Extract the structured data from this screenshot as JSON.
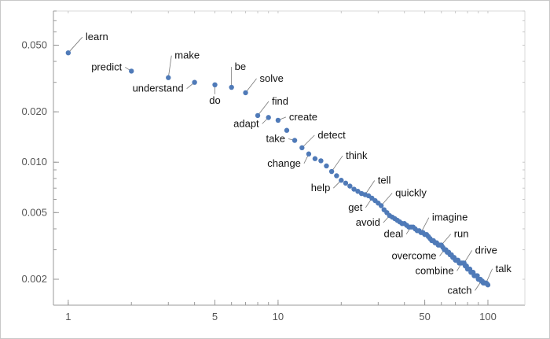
{
  "chart_data": {
    "type": "scatter",
    "title": "",
    "xlabel": "",
    "ylabel": "",
    "x_scale": "log",
    "y_scale": "log",
    "xlim": [
      0.85,
      150
    ],
    "ylim": [
      0.0014,
      0.08
    ],
    "grid": false,
    "x_ticks": [
      {
        "value": 1,
        "label": "1"
      },
      {
        "value": 5,
        "label": "5"
      },
      {
        "value": 10,
        "label": "10"
      },
      {
        "value": 50,
        "label": "50"
      },
      {
        "value": 100,
        "label": "100"
      }
    ],
    "y_ticks": [
      {
        "value": 0.05,
        "label": "0.050"
      },
      {
        "value": 0.02,
        "label": "0.020"
      },
      {
        "value": 0.01,
        "label": "0.010"
      },
      {
        "value": 0.005,
        "label": "0.005"
      },
      {
        "value": 0.002,
        "label": "0.002"
      }
    ],
    "point_color": "#4f7ab8",
    "labeled_points": [
      {
        "word": "learn",
        "rank": 1,
        "value": 0.045
      },
      {
        "word": "predict",
        "rank": 2,
        "value": 0.035
      },
      {
        "word": "make",
        "rank": 3,
        "value": 0.032
      },
      {
        "word": "understand",
        "rank": 4,
        "value": 0.03
      },
      {
        "word": "do",
        "rank": 5,
        "value": 0.029
      },
      {
        "word": "be",
        "rank": 6,
        "value": 0.028
      },
      {
        "word": "solve",
        "rank": 7,
        "value": 0.026
      },
      {
        "word": "find",
        "rank": 8,
        "value": 0.019
      },
      {
        "word": "adapt",
        "rank": 9,
        "value": 0.0185
      },
      {
        "word": "create",
        "rank": 10,
        "value": 0.0178
      },
      {
        "word": "take",
        "rank": 12,
        "value": 0.0135
      },
      {
        "word": "detect",
        "rank": 13,
        "value": 0.0122
      },
      {
        "word": "change",
        "rank": 14,
        "value": 0.0112
      },
      {
        "word": "think",
        "rank": 18,
        "value": 0.0088
      },
      {
        "word": "help",
        "rank": 20,
        "value": 0.0078
      },
      {
        "word": "tell",
        "rank": 26,
        "value": 0.0064
      },
      {
        "word": "get",
        "rank": 28,
        "value": 0.0061
      },
      {
        "word": "quickly",
        "rank": 31,
        "value": 0.0055
      },
      {
        "word": "avoid",
        "rank": 34,
        "value": 0.0048
      },
      {
        "word": "imagine",
        "rank": 48,
        "value": 0.0038
      },
      {
        "word": "deal",
        "rank": 43,
        "value": 0.0041
      },
      {
        "word": "run",
        "rank": 60,
        "value": 0.0032
      },
      {
        "word": "overcome",
        "rank": 62,
        "value": 0.003
      },
      {
        "word": "drive",
        "rank": 77,
        "value": 0.0025
      },
      {
        "word": "combine",
        "rank": 75,
        "value": 0.0025
      },
      {
        "word": "talk",
        "rank": 98,
        "value": 0.0019
      },
      {
        "word": "catch",
        "rank": 93,
        "value": 0.00195
      }
    ],
    "unlabeled_points": [
      [
        11,
        0.0155
      ],
      [
        15,
        0.0105
      ],
      [
        16,
        0.0102
      ],
      [
        17,
        0.0095
      ],
      [
        19,
        0.0083
      ],
      [
        21,
        0.0075
      ],
      [
        22,
        0.0072
      ],
      [
        23,
        0.0069
      ],
      [
        24,
        0.0067
      ],
      [
        25,
        0.0065
      ],
      [
        27,
        0.0063
      ],
      [
        29,
        0.0059
      ],
      [
        30,
        0.0057
      ],
      [
        32,
        0.0052
      ],
      [
        33,
        0.005
      ],
      [
        35,
        0.0047
      ],
      [
        36,
        0.0046
      ],
      [
        37,
        0.0045
      ],
      [
        38,
        0.0044
      ],
      [
        39,
        0.0043
      ],
      [
        40,
        0.0043
      ],
      [
        41,
        0.0042
      ],
      [
        42,
        0.0041
      ],
      [
        44,
        0.0041
      ],
      [
        45,
        0.004
      ],
      [
        46,
        0.0039
      ],
      [
        47,
        0.0039
      ],
      [
        49,
        0.0038
      ],
      [
        50,
        0.0037
      ],
      [
        51,
        0.0037
      ],
      [
        52,
        0.0036
      ],
      [
        53,
        0.0035
      ],
      [
        54,
        0.0034
      ],
      [
        55,
        0.0034
      ],
      [
        56,
        0.0033
      ],
      [
        57,
        0.0033
      ],
      [
        58,
        0.0032
      ],
      [
        59,
        0.0032
      ],
      [
        61,
        0.0031
      ],
      [
        63,
        0.003
      ],
      [
        64,
        0.0029
      ],
      [
        65,
        0.0029
      ],
      [
        66,
        0.0028
      ],
      [
        67,
        0.0028
      ],
      [
        68,
        0.0027
      ],
      [
        69,
        0.0027
      ],
      [
        70,
        0.0026
      ],
      [
        71,
        0.0026
      ],
      [
        72,
        0.0026
      ],
      [
        73,
        0.0025
      ],
      [
        74,
        0.0025
      ],
      [
        76,
        0.0025
      ],
      [
        78,
        0.0024
      ],
      [
        79,
        0.0024
      ],
      [
        80,
        0.0023
      ],
      [
        81,
        0.0023
      ],
      [
        82,
        0.0023
      ],
      [
        83,
        0.0022
      ],
      [
        84,
        0.0022
      ],
      [
        85,
        0.0022
      ],
      [
        86,
        0.0021
      ],
      [
        87,
        0.0021
      ],
      [
        88,
        0.0021
      ],
      [
        89,
        0.0021
      ],
      [
        90,
        0.002
      ],
      [
        91,
        0.002
      ],
      [
        92,
        0.002
      ],
      [
        94,
        0.00195
      ],
      [
        95,
        0.0019
      ],
      [
        96,
        0.0019
      ],
      [
        97,
        0.0019
      ],
      [
        99,
        0.00188
      ],
      [
        100,
        0.00185
      ]
    ]
  }
}
